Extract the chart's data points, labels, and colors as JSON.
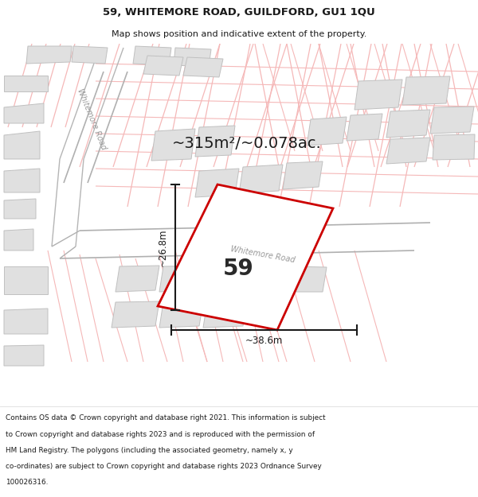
{
  "title_line1": "59, WHITEMORE ROAD, GUILDFORD, GU1 1QU",
  "title_line2": "Map shows position and indicative extent of the property.",
  "area_text": "~315m²/~0.078ac.",
  "property_number": "59",
  "dim_width": "~38.6m",
  "dim_height": "~26.8m",
  "road_label_upper": "Whitemore Road",
  "road_label_lower": "Whitemore Road",
  "footer_lines": [
    "Contains OS data © Crown copyright and database right 2021. This information is subject",
    "to Crown copyright and database rights 2023 and is reproduced with the permission of",
    "HM Land Registry. The polygons (including the associated geometry, namely x, y",
    "co-ordinates) are subject to Crown copyright and database rights 2023 Ordnance Survey",
    "100026316."
  ],
  "map_bg": "#ffffff",
  "road_line_color": "#f5b8b8",
  "road_boundary_color": "#c8c8c8",
  "building_fill": "#e0e0e0",
  "building_edge": "#c0c0c0",
  "property_outline_color": "#cc0000",
  "property_fill": "#ffffff",
  "dim_line_color": "#1a1a1a",
  "title_color": "#1a1a1a",
  "footer_color": "#1a1a1a",
  "road_label_color": "#999999",
  "area_text_color": "#1a1a1a"
}
